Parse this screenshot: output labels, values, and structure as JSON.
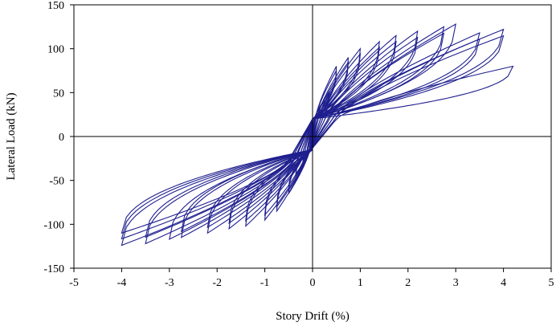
{
  "chart_data": {
    "type": "line",
    "title": "",
    "xlabel": "Story Drift (%)",
    "ylabel": "Lateral Load  (kN)",
    "xlim": [
      -5,
      5
    ],
    "ylim": [
      -150,
      150
    ],
    "x_ticks": [
      -5,
      -4,
      -3,
      -2,
      -1,
      0,
      1,
      2,
      3,
      4,
      5
    ],
    "y_ticks": [
      -150,
      -100,
      -50,
      0,
      50,
      100,
      150
    ],
    "grid": false,
    "legend": "none",
    "series_color": "#1f1f8f",
    "frame_color": "#000000",
    "hysteresis_cycles": [
      {
        "peak_pos_drift": 0.2,
        "peak_pos_load": 30,
        "peak_neg_drift": -0.2,
        "peak_neg_load": -30,
        "repeats": 2
      },
      {
        "peak_pos_drift": 0.35,
        "peak_pos_load": 50,
        "peak_neg_drift": -0.35,
        "peak_neg_load": -45,
        "repeats": 2
      },
      {
        "peak_pos_drift": 0.5,
        "peak_pos_load": 80,
        "peak_neg_drift": -0.5,
        "peak_neg_load": -65,
        "repeats": 2
      },
      {
        "peak_pos_drift": 0.75,
        "peak_pos_load": 90,
        "peak_neg_drift": -0.75,
        "peak_neg_load": -85,
        "repeats": 2
      },
      {
        "peak_pos_drift": 1.0,
        "peak_pos_load": 100,
        "peak_neg_drift": -1.0,
        "peak_neg_load": -95,
        "repeats": 2
      },
      {
        "peak_pos_drift": 1.4,
        "peak_pos_load": 108,
        "peak_neg_drift": -1.4,
        "peak_neg_load": -102,
        "repeats": 2
      },
      {
        "peak_pos_drift": 1.75,
        "peak_pos_load": 115,
        "peak_neg_drift": -1.75,
        "peak_neg_load": -105,
        "repeats": 2
      },
      {
        "peak_pos_drift": 2.2,
        "peak_pos_load": 120,
        "peak_neg_drift": -2.2,
        "peak_neg_load": -110,
        "repeats": 2
      },
      {
        "peak_pos_drift": 2.75,
        "peak_pos_load": 125,
        "peak_neg_drift": -2.75,
        "peak_neg_load": -115,
        "repeats": 2
      },
      {
        "peak_pos_drift": 3.0,
        "peak_pos_load": 128,
        "peak_neg_drift": -3.0,
        "peak_neg_load": -117,
        "repeats": 1
      },
      {
        "peak_pos_drift": 3.5,
        "peak_pos_load": 118,
        "peak_neg_drift": -3.5,
        "peak_neg_load": -122,
        "repeats": 2
      },
      {
        "peak_pos_drift": 4.0,
        "peak_pos_load": 122,
        "peak_neg_drift": -4.0,
        "peak_neg_load": -124,
        "repeats": 2
      },
      {
        "peak_pos_drift": 4.2,
        "peak_pos_load": 80,
        "peak_neg_drift": -4.0,
        "peak_neg_load": -110,
        "repeats": 1
      }
    ]
  }
}
